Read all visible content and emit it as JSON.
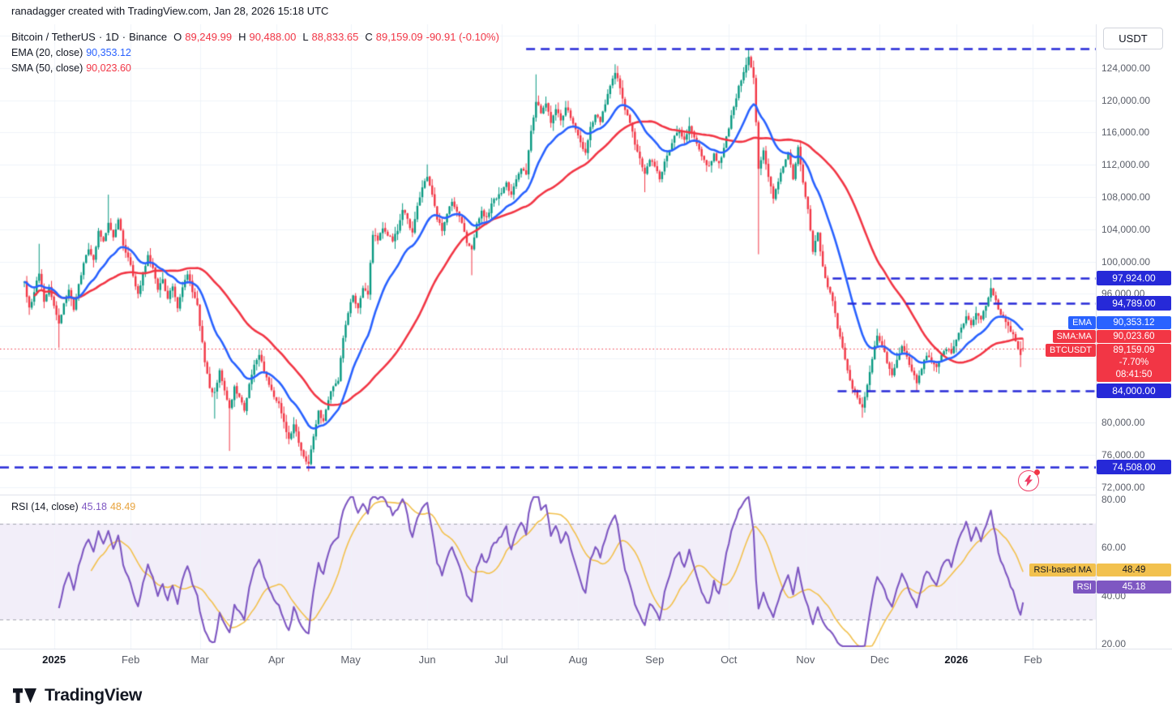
{
  "attribution": "ranadagger created with TradingView.com, Jan 28, 2026 15:18 UTC",
  "toolbar": {
    "currency": "USDT"
  },
  "legend": {
    "symbol": "Bitcoin / TetherUS",
    "sep1": "·",
    "interval": "1D",
    "sep2": "·",
    "exchange": "Binance",
    "o_label": "O",
    "o": "89,249.99",
    "h_label": "H",
    "h": "90,488.00",
    "l_label": "L",
    "l": "88,833.65",
    "c_label": "C",
    "c": "89,159.09",
    "change": "-90.91 (-0.10%)",
    "ema_label": "EMA (20, close)",
    "ema_value": "90,353.12",
    "sma_label": "SMA (50, close)",
    "sma_value": "90,023.60"
  },
  "rsi_legend": {
    "label": "RSI (14, close)",
    "rsi_value": "45.18",
    "ma_value": "48.49"
  },
  "badges": {
    "ema": {
      "name": "EMA",
      "value": "90,353.12"
    },
    "sma": {
      "name": "SMA:MA",
      "value": "90,023.60"
    },
    "symbol": {
      "name": "BTCUSDT",
      "lines": [
        "89,159.09",
        "-7.70%",
        "08:41:50"
      ]
    },
    "rsi_ma": {
      "name": "RSI-based MA",
      "value": "48.49"
    },
    "rsi": {
      "name": "RSI",
      "value": "45.18"
    }
  },
  "logo": {
    "text": "TradingView"
  },
  "colors": {
    "up": "#089981",
    "down": "#f23645",
    "ema": "#2962ff",
    "sma": "#f23645",
    "level": "#2629d8",
    "grid": "#f0f3fa",
    "scale_text": "#5a5e69",
    "border": "#e0e3eb",
    "rsi": "#7e57c2",
    "rsi_ma": "#f2c14e",
    "band": "rgba(126,87,194,0.10)",
    "band_edge": "#a5a8b1",
    "last_price": "#f23645",
    "badge_yellow": "#f2c14e"
  },
  "chart_data": {
    "type": "candlestick",
    "title": "Bitcoin / TetherUS · 1D · Binance",
    "symbol": "BTCUSDT",
    "interval": "1D",
    "exchange": "Binance",
    "ohlc_last": {
      "open": 89249.99,
      "high": 90488.0,
      "low": 88833.65,
      "close": 89159.09,
      "change": -90.91,
      "change_pct": -0.1
    },
    "indicators": [
      {
        "type": "EMA",
        "period": 20,
        "value": 90353.12,
        "color": "#2962ff"
      },
      {
        "type": "SMA",
        "period": 50,
        "value": 90023.6,
        "color": "#f23645"
      },
      {
        "type": "RSI",
        "period": 14,
        "value": 45.18,
        "ma_value": 48.49
      }
    ],
    "levels": [
      {
        "value": 126430,
        "label": "",
        "start_day": 203
      },
      {
        "value": 97924,
        "label": "97,924.00",
        "start_day": 327
      },
      {
        "value": 94789,
        "label": "94,789.00",
        "start_day": 333
      },
      {
        "value": 84000,
        "label": "84,000.00",
        "start_day": 329
      },
      {
        "value": 74508,
        "label": "74,508.00",
        "start_day": -10
      }
    ],
    "y_range": [
      71080,
      129430
    ],
    "x_range_days": [
      0,
      433
    ],
    "y_ticks": [
      {
        "value": 124000,
        "text": "124,000.00"
      },
      {
        "value": 120000,
        "text": "120,000.00"
      },
      {
        "value": 116000,
        "text": "116,000.00"
      },
      {
        "value": 112000,
        "text": "112,000.00"
      },
      {
        "value": 108000,
        "text": "108,000.00"
      },
      {
        "value": 104000,
        "text": "104,000.00"
      },
      {
        "value": 100000,
        "text": "100,000.00"
      },
      {
        "value": 96000,
        "text": "96,000.00"
      },
      {
        "value": 80000,
        "text": "80,000.00"
      },
      {
        "value": 76000,
        "text": "76,000.00"
      },
      {
        "value": 72000,
        "text": "72,000.00"
      }
    ],
    "rsi_ticks": [
      {
        "value": 80,
        "text": "80.00"
      },
      {
        "value": 60,
        "text": "60.00"
      },
      {
        "value": 40,
        "text": "40.00"
      },
      {
        "value": 20,
        "text": "20.00"
      }
    ],
    "x_ticks": [
      {
        "label": "2025",
        "day": 12,
        "major": true
      },
      {
        "label": "Feb",
        "day": 43
      },
      {
        "label": "Mar",
        "day": 71
      },
      {
        "label": "Apr",
        "day": 102
      },
      {
        "label": "May",
        "day": 132
      },
      {
        "label": "Jun",
        "day": 163
      },
      {
        "label": "Jul",
        "day": 193
      },
      {
        "label": "Aug",
        "day": 224
      },
      {
        "label": "Sep",
        "day": 255
      },
      {
        "label": "Oct",
        "day": 285
      },
      {
        "label": "Nov",
        "day": 316
      },
      {
        "label": "Dec",
        "day": 346
      },
      {
        "label": "2026",
        "day": 377,
        "major": true
      },
      {
        "label": "Feb",
        "day": 408
      }
    ],
    "price_waypoints": [
      [
        0,
        97500
      ],
      [
        2,
        94300
      ],
      [
        4,
        96200
      ],
      [
        6,
        98500
      ],
      [
        8,
        95000
      ],
      [
        10,
        96800
      ],
      [
        12,
        94500
      ],
      [
        14,
        92300
      ],
      [
        16,
        94800
      ],
      [
        18,
        96500
      ],
      [
        20,
        94000
      ],
      [
        22,
        97200
      ],
      [
        24,
        99800
      ],
      [
        26,
        101500
      ],
      [
        28,
        100200
      ],
      [
        30,
        103800
      ],
      [
        32,
        102500
      ],
      [
        34,
        104800
      ],
      [
        36,
        103000
      ],
      [
        38,
        105200
      ],
      [
        40,
        102000
      ],
      [
        42,
        100500
      ],
      [
        44,
        98200
      ],
      [
        46,
        96000
      ],
      [
        48,
        98500
      ],
      [
        50,
        100800
      ],
      [
        52,
        99200
      ],
      [
        54,
        96500
      ],
      [
        56,
        97800
      ],
      [
        58,
        95400
      ],
      [
        60,
        96900
      ],
      [
        62,
        94200
      ],
      [
        64,
        96800
      ],
      [
        66,
        98400
      ],
      [
        68,
        96200
      ],
      [
        70,
        94600
      ],
      [
        71,
        92000
      ],
      [
        73,
        87500
      ],
      [
        75,
        84300
      ],
      [
        77,
        83800
      ],
      [
        79,
        86500
      ],
      [
        81,
        84000
      ],
      [
        83,
        81800
      ],
      [
        85,
        84500
      ],
      [
        87,
        83200
      ],
      [
        89,
        81500
      ],
      [
        91,
        84800
      ],
      [
        93,
        87200
      ],
      [
        95,
        88400
      ],
      [
        97,
        86300
      ],
      [
        99,
        84700
      ],
      [
        101,
        83200
      ],
      [
        103,
        82400
      ],
      [
        105,
        80100
      ],
      [
        107,
        78000
      ],
      [
        109,
        79800
      ],
      [
        111,
        77500
      ],
      [
        113,
        75800
      ],
      [
        115,
        74900
      ],
      [
        117,
        78300
      ],
      [
        119,
        81500
      ],
      [
        121,
        80200
      ],
      [
        123,
        82800
      ],
      [
        125,
        84500
      ],
      [
        127,
        85200
      ],
      [
        129,
        90500
      ],
      [
        131,
        93600
      ],
      [
        133,
        95800
      ],
      [
        135,
        94200
      ],
      [
        137,
        96700
      ],
      [
        139,
        95900
      ],
      [
        141,
        103300
      ],
      [
        143,
        102600
      ],
      [
        145,
        104100
      ],
      [
        147,
        103200
      ],
      [
        149,
        102500
      ],
      [
        151,
        103800
      ],
      [
        153,
        106400
      ],
      [
        155,
        105300
      ],
      [
        157,
        103600
      ],
      [
        159,
        106900
      ],
      [
        161,
        109200
      ],
      [
        163,
        110500
      ],
      [
        165,
        108300
      ],
      [
        167,
        105200
      ],
      [
        169,
        103800
      ],
      [
        171,
        105900
      ],
      [
        173,
        107400
      ],
      [
        175,
        106200
      ],
      [
        177,
        104800
      ],
      [
        179,
        102300
      ],
      [
        181,
        101500
      ],
      [
        183,
        104700
      ],
      [
        185,
        106300
      ],
      [
        187,
        105500
      ],
      [
        189,
        107200
      ],
      [
        191,
        107800
      ],
      [
        193,
        108500
      ],
      [
        195,
        109800
      ],
      [
        197,
        108300
      ],
      [
        199,
        110200
      ],
      [
        201,
        111500
      ],
      [
        203,
        110800
      ],
      [
        205,
        116200
      ],
      [
        207,
        119800
      ],
      [
        209,
        118400
      ],
      [
        211,
        119600
      ],
      [
        213,
        117200
      ],
      [
        215,
        118900
      ],
      [
        217,
        117500
      ],
      [
        219,
        119100
      ],
      [
        221,
        117800
      ],
      [
        223,
        116400
      ],
      [
        225,
        114800
      ],
      [
        227,
        113500
      ],
      [
        229,
        116700
      ],
      [
        231,
        118200
      ],
      [
        233,
        117300
      ],
      [
        235,
        119500
      ],
      [
        237,
        121800
      ],
      [
        239,
        123400
      ],
      [
        241,
        121500
      ],
      [
        243,
        118800
      ],
      [
        245,
        117200
      ],
      [
        247,
        114500
      ],
      [
        249,
        112800
      ],
      [
        251,
        110900
      ],
      [
        253,
        112600
      ],
      [
        255,
        111800
      ],
      [
        257,
        110200
      ],
      [
        259,
        112400
      ],
      [
        261,
        113800
      ],
      [
        263,
        115600
      ],
      [
        265,
        116300
      ],
      [
        267,
        115100
      ],
      [
        269,
        116800
      ],
      [
        271,
        115400
      ],
      [
        273,
        113900
      ],
      [
        275,
        112600
      ],
      [
        277,
        111900
      ],
      [
        279,
        113400
      ],
      [
        281,
        112200
      ],
      [
        283,
        114100
      ],
      [
        285,
        116500
      ],
      [
        287,
        119200
      ],
      [
        289,
        121800
      ],
      [
        291,
        123500
      ],
      [
        293,
        125400
      ],
      [
        295,
        122800
      ],
      [
        297,
        111500
      ],
      [
        299,
        113800
      ],
      [
        301,
        110500
      ],
      [
        303,
        107800
      ],
      [
        305,
        109900
      ],
      [
        307,
        111800
      ],
      [
        309,
        113500
      ],
      [
        311,
        110200
      ],
      [
        313,
        114200
      ],
      [
        315,
        109800
      ],
      [
        317,
        106500
      ],
      [
        319,
        101200
      ],
      [
        321,
        103600
      ],
      [
        323,
        99400
      ],
      [
        325,
        96800
      ],
      [
        327,
        95100
      ],
      [
        329,
        91700
      ],
      [
        331,
        89300
      ],
      [
        333,
        86500
      ],
      [
        335,
        84200
      ],
      [
        337,
        83100
      ],
      [
        339,
        81900
      ],
      [
        341,
        84700
      ],
      [
        343,
        87900
      ],
      [
        345,
        90800
      ],
      [
        347,
        89600
      ],
      [
        349,
        87400
      ],
      [
        351,
        85900
      ],
      [
        353,
        87800
      ],
      [
        355,
        89500
      ],
      [
        357,
        88200
      ],
      [
        359,
        86400
      ],
      [
        361,
        84900
      ],
      [
        363,
        86700
      ],
      [
        365,
        88300
      ],
      [
        367,
        87600
      ],
      [
        369,
        86900
      ],
      [
        371,
        88400
      ],
      [
        373,
        89100
      ],
      [
        375,
        88600
      ],
      [
        377,
        90300
      ],
      [
        379,
        91800
      ],
      [
        381,
        93200
      ],
      [
        383,
        92100
      ],
      [
        385,
        93600
      ],
      [
        387,
        92800
      ],
      [
        389,
        94500
      ],
      [
        391,
        96700
      ],
      [
        393,
        95200
      ],
      [
        395,
        93400
      ],
      [
        397,
        92500
      ],
      [
        399,
        91300
      ],
      [
        401,
        90100
      ],
      [
        403,
        88400
      ],
      [
        404,
        89159
      ]
    ],
    "extremes": [
      {
        "day": 6,
        "high": 102200
      },
      {
        "day": 14,
        "low": 89300
      },
      {
        "day": 34,
        "high": 108300
      },
      {
        "day": 77,
        "low": 80500
      },
      {
        "day": 83,
        "low": 76500
      },
      {
        "day": 115,
        "low": 74508
      },
      {
        "day": 163,
        "high": 112050
      },
      {
        "day": 181,
        "low": 98300
      },
      {
        "day": 207,
        "high": 123218
      },
      {
        "day": 239,
        "high": 124474
      },
      {
        "day": 251,
        "low": 108600
      },
      {
        "day": 269,
        "high": 117900
      },
      {
        "day": 293,
        "high": 126430
      },
      {
        "day": 297,
        "low": 100900
      },
      {
        "day": 339,
        "low": 80620
      },
      {
        "day": 361,
        "low": 83900
      },
      {
        "day": 391,
        "high": 97924
      },
      {
        "day": 403,
        "low": 86900
      }
    ],
    "rsi_current": {
      "value": 45.18,
      "ma": 48.49,
      "band": [
        30,
        70
      ]
    }
  }
}
